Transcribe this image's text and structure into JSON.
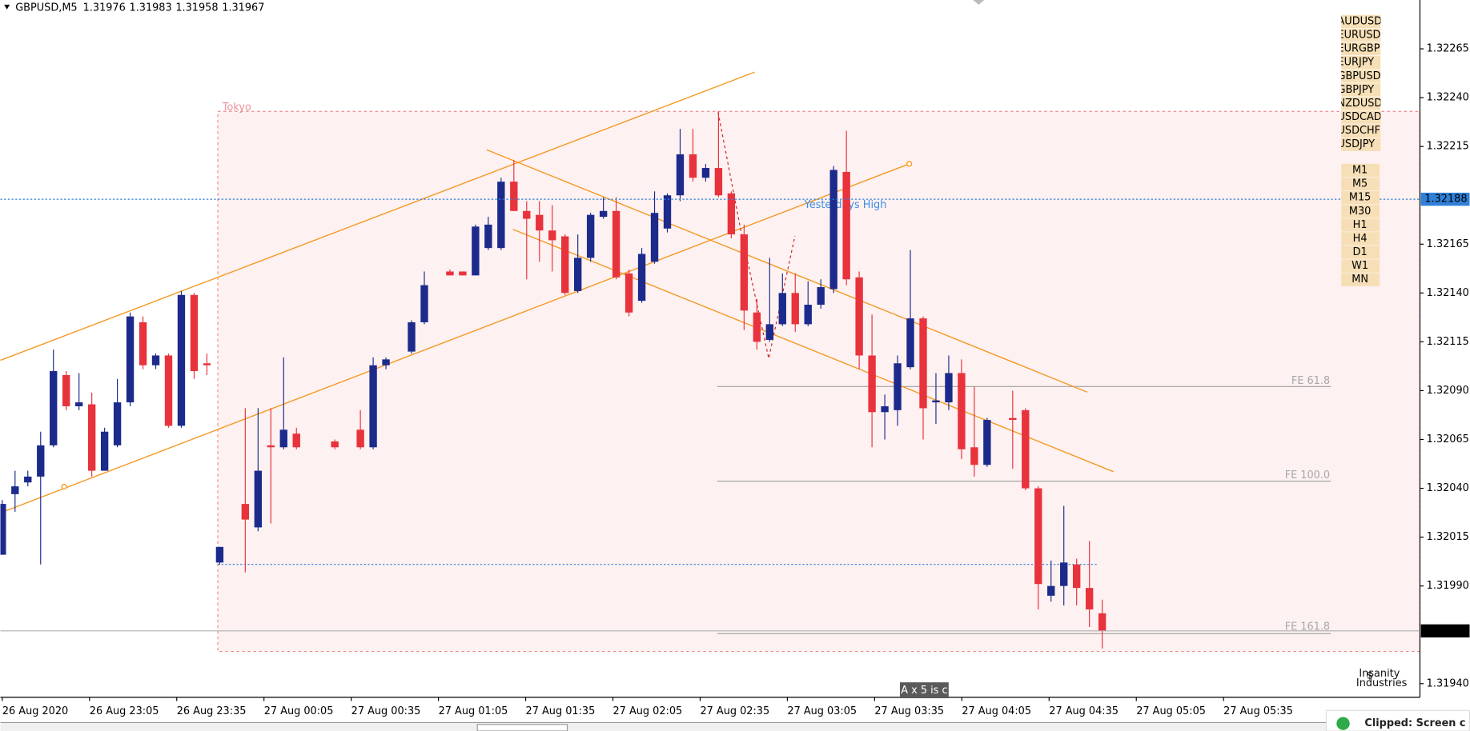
{
  "chart_data": {
    "type": "candlestick",
    "title": "GBPUSD,M5",
    "up_color": "#1c2a8c",
    "down_color": "#e8323c",
    "ylim": [
      1.31933,
      1.3229
    ],
    "yticks": [
      1.32265,
      {
        "value": 1.3224,
        "label": "1.32240"
      },
      1.32215,
      1.32165,
      {
        "value": 1.3214,
        "label": "1.32140"
      },
      1.32115,
      {
        "value": 1.3209,
        "label": "1.32090"
      },
      1.32065,
      {
        "value": 1.3204,
        "label": "1.32040"
      },
      1.32015,
      {
        "value": 1.3199,
        "label": "1.31990"
      },
      {
        "value": 1.3194,
        "label": "1.31940"
      }
    ],
    "price_lines": [
      {
        "value": 1.32188,
        "color": "#2f80d8"
      },
      {
        "value": 1.31967,
        "color": "#000000"
      }
    ],
    "x_labels": [
      "26 Aug 2020",
      "26 Aug 23:05",
      "26 Aug 23:35",
      "27 Aug 00:05",
      "27 Aug 00:35",
      "27 Aug 01:05",
      "27 Aug 01:35",
      "27 Aug 02:05",
      "27 Aug 02:35",
      "27 Aug 03:05",
      "27 Aug 03:35",
      "27 Aug 04:05",
      "27 Aug 04:35",
      "27 Aug 05:05",
      "27 Aug 05:35"
    ],
    "open": [
      1.32006,
      1.32037,
      1.32043,
      1.32046,
      1.32062,
      1.32098,
      1.32082,
      1.32083,
      1.32049,
      1.32062,
      1.32084,
      1.32125,
      1.32103,
      1.32108,
      1.32072,
      1.32139,
      1.32104,
      1.32002,
      null,
      1.32032,
      1.3202,
      1.32062,
      1.32061,
      1.32068,
      null,
      null,
      1.32064,
      null,
      1.3207,
      1.32061,
      1.32103,
      null,
      1.3211,
      1.32125,
      null,
      1.32151,
      1.32151,
      1.32149,
      1.32163,
      1.32163,
      1.32197,
      1.32182,
      1.3218,
      1.32172,
      1.32169,
      1.32141,
      1.32158,
      1.32179,
      1.32182,
      1.3215,
      1.32136,
      1.32156,
      1.32173,
      1.3219,
      1.32211,
      1.32199,
      1.32204,
      1.32191,
      1.3217,
      1.3213,
      1.32116,
      1.32124,
      1.3214,
      1.32124,
      1.32134,
      1.32142,
      1.32202,
      1.32148,
      1.32108,
      1.32079,
      1.3208,
      1.32102,
      1.32127,
      1.32084,
      1.32084,
      1.32099,
      1.32061,
      1.32052,
      null,
      1.32076,
      1.3208,
      1.3204,
      1.31985,
      1.3199,
      1.32001,
      1.31989,
      1.31976
    ],
    "high": [
      1.32034,
      1.32049,
      1.32049,
      1.32069,
      1.32111,
      1.321,
      1.32099,
      1.32089,
      1.32071,
      1.32096,
      1.3213,
      1.32128,
      1.32109,
      1.32109,
      1.32141,
      1.3214,
      1.32109,
      1.3201,
      null,
      1.32081,
      1.32081,
      1.32081,
      1.32107,
      1.32071,
      null,
      null,
      1.32065,
      null,
      1.3208,
      1.32107,
      1.32107,
      null,
      1.32126,
      1.32151,
      null,
      1.32152,
      1.32151,
      1.32175,
      1.32179,
      1.32199,
      1.32208,
      1.32187,
      1.32187,
      1.32185,
      1.3217,
      1.3217,
      1.32181,
      1.32189,
      1.32189,
      1.32152,
      1.32163,
      1.32192,
      1.32191,
      1.32224,
      1.32224,
      1.32206,
      1.32233,
      1.32192,
      1.32175,
      1.32137,
      1.32158,
      1.3215,
      1.3215,
      1.32146,
      1.32147,
      1.32205,
      1.32223,
      1.32151,
      1.32129,
      1.32088,
      1.32108,
      1.32162,
      1.32128,
      1.32099,
      1.32108,
      1.32106,
      1.32092,
      1.32076,
      null,
      1.3209,
      1.32081,
      1.32041,
      1.32003,
      1.32031,
      1.32004,
      1.32013,
      1.31983
    ],
    "low": [
      1.32006,
      1.32028,
      1.32041,
      1.32001,
      1.32061,
      1.3208,
      1.3208,
      1.32046,
      1.32049,
      1.32061,
      1.32082,
      1.32101,
      1.32101,
      1.32071,
      1.32071,
      1.32096,
      1.32098,
      1.32001,
      null,
      1.31997,
      1.32018,
      1.32022,
      1.3206,
      1.3206,
      null,
      null,
      1.3206,
      null,
      1.3206,
      1.3206,
      1.32101,
      null,
      1.32109,
      1.32124,
      null,
      1.32149,
      1.32149,
      1.32149,
      1.32162,
      1.32162,
      1.32182,
      1.32147,
      1.32156,
      1.32151,
      1.32139,
      1.3214,
      1.32156,
      1.32178,
      1.32147,
      1.32128,
      1.32135,
      1.32155,
      1.32171,
      1.32187,
      1.32197,
      1.32197,
      1.32189,
      1.32168,
      1.32121,
      1.32111,
      1.32115,
      1.32123,
      1.3212,
      1.32123,
      1.32132,
      1.3214,
      1.32144,
      1.32101,
      1.32061,
      1.32065,
      1.32072,
      1.32101,
      1.32065,
      1.32073,
      1.3208,
      1.32055,
      1.32046,
      1.32051,
      null,
      1.3205,
      1.32039,
      1.31978,
      1.31982,
      1.3198,
      1.3198,
      1.31969,
      1.31958
    ],
    "close": [
      1.32032,
      1.32041,
      1.32046,
      1.32062,
      1.321,
      1.32082,
      1.32084,
      1.32049,
      1.32069,
      1.32084,
      1.32128,
      1.32103,
      1.32108,
      1.32072,
      1.32139,
      1.321,
      1.32103,
      1.3201,
      null,
      1.32024,
      1.32049,
      1.32061,
      1.3207,
      1.32061,
      null,
      null,
      1.32061,
      null,
      1.32061,
      1.32103,
      1.32106,
      null,
      1.32125,
      1.32144,
      null,
      1.32149,
      1.32149,
      1.32174,
      1.32175,
      1.32197,
      1.32182,
      1.32178,
      1.32172,
      1.32167,
      1.3214,
      1.32158,
      1.3218,
      1.32182,
      1.32148,
      1.3213,
      1.3216,
      1.32181,
      1.3219,
      1.32211,
      1.32199,
      1.32204,
      1.3219,
      1.3217,
      1.32131,
      1.32115,
      1.32124,
      1.3214,
      1.32124,
      1.32134,
      1.32143,
      1.32203,
      1.32147,
      1.32108,
      1.32079,
      1.32082,
      1.32104,
      1.32127,
      1.32081,
      1.32085,
      1.32099,
      1.3206,
      1.32052,
      1.32075,
      null,
      1.32075,
      1.3204,
      1.31991,
      1.3199,
      1.32002,
      1.31989,
      1.31978,
      1.31967
    ],
    "annotations": {
      "session": "Tokyo",
      "yesterday_high": "Yesterdays High",
      "fe_618": "FE 61.8",
      "fe_100": "FE 100.0",
      "fe_1618": "FE 161.8"
    }
  },
  "ui": {
    "symbols": [
      {
        "label": "AUDUSD",
        "active": false
      },
      {
        "label": "EURUSD",
        "active": false
      },
      {
        "label": "EURGBP",
        "active": false
      },
      {
        "label": "EURJPY",
        "active": false
      },
      {
        "label": "GBPUSD",
        "active": true
      },
      {
        "label": "GBPJPY",
        "active": false
      },
      {
        "label": "NZDUSD",
        "active": false
      },
      {
        "label": "USDCAD",
        "active": false
      },
      {
        "label": "USDCHF",
        "active": false
      },
      {
        "label": "USDJPY",
        "active": false
      }
    ],
    "timeframes": [
      {
        "label": "M1",
        "active": false
      },
      {
        "label": "M5",
        "active": true
      },
      {
        "label": "M15",
        "active": false
      },
      {
        "label": "M30",
        "active": false
      },
      {
        "label": "H1",
        "active": false
      },
      {
        "label": "H4",
        "active": false
      },
      {
        "label": "D1",
        "active": false
      },
      {
        "label": "W1",
        "active": false
      },
      {
        "label": "MN",
        "active": false
      }
    ],
    "tooltip": "A x 5 is c",
    "logo_line1": "Insanity",
    "logo_line2": "Industries",
    "notification": "Clipped: Screen c"
  }
}
